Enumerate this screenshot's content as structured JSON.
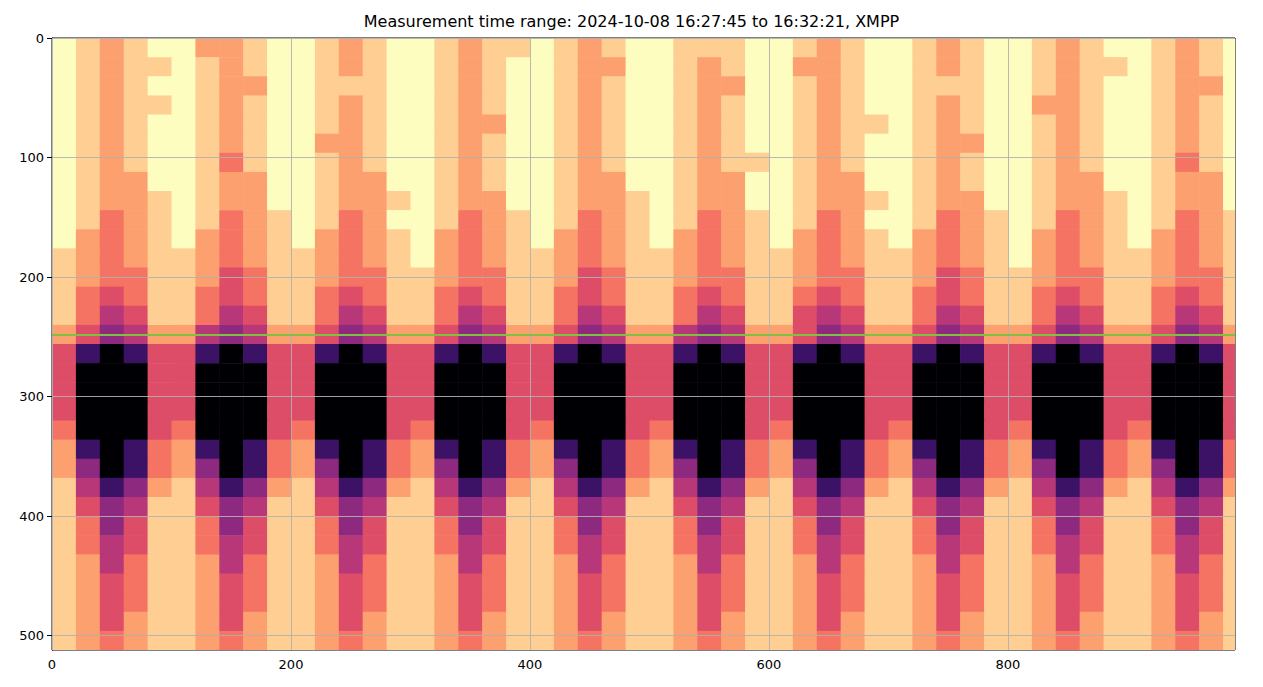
{
  "chart_data": {
    "type": "heatmap",
    "title": "Measurement time range: 2024-10-08 16:27:45 to 16:32:21, XMPP",
    "xlim": [
      0,
      990
    ],
    "xticks": [
      0,
      200,
      400,
      600,
      800
    ],
    "ylim": [
      512,
      0
    ],
    "yticks": [
      0,
      100,
      200,
      300,
      400,
      500
    ],
    "grid": true,
    "reference_line": {
      "y": 248,
      "color": "#80c040"
    },
    "x_bins": [
      0,
      20,
      40,
      60,
      80,
      100,
      120,
      140,
      160,
      180,
      200,
      220,
      240,
      260,
      280,
      300,
      320,
      340,
      360,
      380,
      400,
      420,
      440,
      460,
      480,
      500,
      520,
      540,
      560,
      580,
      600,
      620,
      640,
      660,
      680,
      700,
      720,
      740,
      760,
      780,
      800,
      820,
      840,
      860,
      880,
      900,
      920,
      940,
      960,
      980,
      1000
    ],
    "y_bins": [
      0,
      16,
      32,
      48,
      64,
      80,
      96,
      112,
      128,
      144,
      160,
      176,
      192,
      208,
      224,
      240,
      256,
      272,
      288,
      304,
      320,
      336,
      352,
      368,
      384,
      400,
      416,
      432,
      448,
      464,
      480,
      496,
      512
    ],
    "z": [
      [
        0,
        1,
        2,
        1,
        0,
        0,
        2,
        2,
        1,
        0,
        0,
        1,
        2,
        1,
        0,
        0,
        1,
        2,
        1,
        1,
        0,
        1,
        2,
        1,
        0,
        0,
        1,
        1,
        1,
        0,
        0,
        1,
        2,
        1,
        0,
        0,
        1,
        2,
        1,
        0,
        0,
        1,
        2,
        1,
        0,
        0,
        1,
        2,
        1,
        0
      ],
      [
        0,
        1,
        2,
        1,
        1,
        0,
        1,
        2,
        1,
        0,
        0,
        1,
        2,
        1,
        0,
        0,
        1,
        2,
        1,
        0,
        0,
        1,
        2,
        2,
        0,
        0,
        1,
        2,
        1,
        0,
        0,
        2,
        2,
        1,
        0,
        0,
        1,
        2,
        1,
        0,
        0,
        1,
        2,
        1,
        1,
        0,
        1,
        2,
        1,
        0
      ],
      [
        0,
        1,
        2,
        1,
        0,
        0,
        1,
        2,
        2,
        0,
        0,
        1,
        1,
        1,
        0,
        0,
        1,
        2,
        1,
        0,
        0,
        1,
        2,
        1,
        0,
        0,
        1,
        2,
        2,
        0,
        0,
        1,
        2,
        1,
        0,
        0,
        1,
        1,
        1,
        0,
        0,
        1,
        2,
        1,
        0,
        0,
        1,
        2,
        2,
        0
      ],
      [
        0,
        1,
        2,
        1,
        1,
        0,
        1,
        2,
        1,
        0,
        0,
        1,
        2,
        1,
        0,
        0,
        1,
        2,
        1,
        0,
        0,
        1,
        2,
        1,
        0,
        0,
        1,
        2,
        1,
        0,
        0,
        1,
        2,
        1,
        0,
        0,
        1,
        2,
        1,
        0,
        0,
        2,
        2,
        1,
        0,
        0,
        1,
        2,
        1,
        0
      ],
      [
        0,
        1,
        2,
        1,
        0,
        0,
        1,
        2,
        1,
        0,
        0,
        1,
        2,
        1,
        0,
        0,
        1,
        2,
        2,
        0,
        0,
        1,
        2,
        1,
        0,
        0,
        1,
        2,
        1,
        0,
        0,
        1,
        2,
        1,
        1,
        0,
        1,
        2,
        1,
        0,
        0,
        1,
        2,
        1,
        0,
        0,
        1,
        2,
        1,
        0
      ],
      [
        0,
        1,
        2,
        1,
        0,
        0,
        1,
        2,
        1,
        0,
        0,
        2,
        2,
        1,
        0,
        0,
        1,
        2,
        1,
        0,
        0,
        1,
        2,
        1,
        0,
        0,
        1,
        2,
        1,
        0,
        0,
        1,
        2,
        1,
        0,
        0,
        1,
        2,
        2,
        0,
        0,
        1,
        2,
        1,
        0,
        0,
        1,
        2,
        1,
        0
      ],
      [
        0,
        1,
        2,
        1,
        0,
        0,
        1,
        3,
        1,
        0,
        0,
        1,
        2,
        1,
        0,
        0,
        1,
        2,
        1,
        0,
        0,
        1,
        2,
        1,
        0,
        0,
        1,
        2,
        1,
        1,
        0,
        1,
        2,
        1,
        0,
        0,
        1,
        2,
        1,
        0,
        0,
        1,
        2,
        1,
        0,
        0,
        1,
        3,
        1,
        0
      ],
      [
        0,
        1,
        2,
        2,
        0,
        0,
        1,
        2,
        2,
        0,
        0,
        1,
        2,
        2,
        0,
        0,
        1,
        2,
        1,
        0,
        0,
        1,
        2,
        2,
        0,
        0,
        1,
        2,
        2,
        0,
        0,
        1,
        2,
        2,
        0,
        0,
        1,
        2,
        1,
        0,
        0,
        1,
        2,
        2,
        0,
        0,
        1,
        2,
        2,
        0
      ],
      [
        0,
        1,
        2,
        2,
        1,
        0,
        1,
        2,
        2,
        0,
        0,
        1,
        2,
        2,
        1,
        0,
        1,
        2,
        2,
        0,
        0,
        1,
        2,
        2,
        1,
        0,
        1,
        2,
        2,
        0,
        0,
        1,
        2,
        2,
        1,
        0,
        1,
        2,
        2,
        0,
        0,
        1,
        2,
        2,
        1,
        0,
        1,
        2,
        2,
        0
      ],
      [
        0,
        1,
        3,
        2,
        1,
        0,
        1,
        3,
        2,
        1,
        0,
        1,
        3,
        2,
        0,
        0,
        1,
        3,
        2,
        1,
        0,
        1,
        3,
        2,
        1,
        0,
        1,
        3,
        2,
        1,
        0,
        1,
        3,
        2,
        0,
        0,
        1,
        3,
        2,
        1,
        0,
        1,
        3,
        2,
        1,
        0,
        1,
        3,
        2,
        1
      ],
      [
        0,
        2,
        3,
        2,
        1,
        0,
        2,
        3,
        2,
        1,
        0,
        2,
        3,
        2,
        1,
        0,
        2,
        3,
        2,
        1,
        0,
        2,
        3,
        2,
        1,
        0,
        2,
        3,
        2,
        1,
        0,
        2,
        3,
        2,
        1,
        0,
        2,
        3,
        2,
        1,
        0,
        2,
        3,
        2,
        1,
        0,
        2,
        3,
        2,
        1
      ],
      [
        1,
        2,
        3,
        2,
        1,
        1,
        2,
        3,
        2,
        1,
        1,
        2,
        3,
        2,
        1,
        0,
        2,
        3,
        2,
        1,
        1,
        2,
        3,
        2,
        1,
        1,
        2,
        3,
        2,
        1,
        1,
        2,
        3,
        2,
        1,
        1,
        2,
        3,
        2,
        1,
        0,
        2,
        3,
        2,
        1,
        1,
        2,
        3,
        2,
        1
      ],
      [
        1,
        2,
        3,
        3,
        1,
        1,
        2,
        4,
        3,
        1,
        1,
        2,
        3,
        3,
        1,
        1,
        2,
        3,
        3,
        1,
        1,
        2,
        4,
        3,
        1,
        1,
        2,
        3,
        3,
        1,
        1,
        2,
        3,
        3,
        1,
        1,
        2,
        4,
        3,
        1,
        1,
        2,
        3,
        3,
        1,
        1,
        2,
        3,
        3,
        1
      ],
      [
        1,
        3,
        4,
        3,
        1,
        1,
        3,
        4,
        3,
        1,
        1,
        3,
        4,
        3,
        1,
        1,
        3,
        4,
        3,
        1,
        1,
        3,
        4,
        3,
        1,
        1,
        3,
        4,
        3,
        1,
        1,
        3,
        4,
        3,
        1,
        1,
        3,
        4,
        3,
        1,
        1,
        3,
        4,
        3,
        1,
        1,
        3,
        4,
        3,
        1
      ],
      [
        1,
        3,
        5,
        4,
        1,
        1,
        3,
        5,
        4,
        1,
        1,
        3,
        5,
        4,
        1,
        1,
        3,
        5,
        4,
        1,
        1,
        3,
        5,
        4,
        1,
        1,
        3,
        5,
        4,
        1,
        1,
        4,
        5,
        4,
        1,
        1,
        3,
        5,
        4,
        1,
        1,
        3,
        5,
        4,
        1,
        1,
        3,
        5,
        4,
        1
      ],
      [
        2,
        4,
        6,
        5,
        2,
        2,
        5,
        6,
        5,
        2,
        2,
        4,
        6,
        5,
        2,
        2,
        4,
        6,
        5,
        2,
        2,
        4,
        6,
        5,
        2,
        2,
        5,
        6,
        5,
        2,
        2,
        4,
        6,
        5,
        2,
        2,
        4,
        6,
        5,
        2,
        2,
        4,
        6,
        5,
        2,
        2,
        4,
        6,
        5,
        2
      ],
      [
        4,
        8,
        10,
        8,
        4,
        4,
        8,
        10,
        8,
        4,
        4,
        8,
        10,
        8,
        4,
        4,
        8,
        10,
        8,
        4,
        4,
        8,
        10,
        8,
        4,
        4,
        8,
        10,
        8,
        4,
        4,
        8,
        10,
        8,
        4,
        4,
        8,
        10,
        8,
        4,
        4,
        8,
        10,
        8,
        4,
        4,
        8,
        10,
        8,
        4
      ],
      [
        4,
        10,
        10,
        10,
        4,
        4,
        10,
        10,
        10,
        4,
        4,
        10,
        10,
        10,
        4,
        4,
        10,
        10,
        10,
        4,
        4,
        10,
        10,
        10,
        4,
        4,
        10,
        10,
        10,
        4,
        4,
        10,
        10,
        10,
        4,
        4,
        10,
        10,
        10,
        4,
        4,
        10,
        10,
        10,
        4,
        4,
        10,
        10,
        10,
        4
      ],
      [
        4,
        10,
        10,
        10,
        4,
        4,
        10,
        10,
        10,
        4,
        4,
        10,
        10,
        10,
        4,
        4,
        10,
        10,
        10,
        4,
        4,
        10,
        10,
        10,
        4,
        4,
        10,
        10,
        10,
        4,
        4,
        10,
        10,
        10,
        4,
        4,
        10,
        10,
        10,
        4,
        4,
        10,
        10,
        10,
        4,
        4,
        10,
        10,
        10,
        4
      ],
      [
        4,
        10,
        10,
        10,
        4,
        4,
        10,
        10,
        10,
        4,
        4,
        10,
        10,
        10,
        4,
        4,
        10,
        10,
        10,
        4,
        4,
        10,
        10,
        10,
        4,
        4,
        10,
        10,
        10,
        4,
        4,
        10,
        10,
        10,
        4,
        4,
        10,
        10,
        10,
        4,
        4,
        10,
        10,
        10,
        4,
        4,
        10,
        10,
        10,
        4
      ],
      [
        3,
        10,
        10,
        10,
        4,
        3,
        10,
        10,
        10,
        4,
        3,
        10,
        10,
        10,
        4,
        3,
        10,
        10,
        10,
        4,
        3,
        10,
        10,
        10,
        4,
        3,
        10,
        10,
        10,
        4,
        3,
        10,
        10,
        10,
        4,
        3,
        10,
        10,
        10,
        4,
        3,
        10,
        10,
        10,
        4,
        3,
        10,
        10,
        10,
        4
      ],
      [
        2,
        8,
        10,
        8,
        3,
        2,
        8,
        10,
        8,
        3,
        2,
        8,
        10,
        8,
        3,
        2,
        8,
        10,
        8,
        3,
        2,
        8,
        10,
        8,
        3,
        2,
        8,
        10,
        8,
        3,
        2,
        8,
        10,
        8,
        3,
        2,
        8,
        10,
        8,
        3,
        2,
        8,
        10,
        8,
        3,
        2,
        8,
        10,
        8,
        3
      ],
      [
        2,
        6,
        10,
        8,
        3,
        2,
        6,
        10,
        8,
        3,
        2,
        6,
        10,
        8,
        3,
        2,
        6,
        10,
        8,
        3,
        2,
        6,
        10,
        8,
        3,
        2,
        6,
        10,
        8,
        3,
        2,
        6,
        10,
        8,
        3,
        2,
        6,
        10,
        8,
        3,
        2,
        6,
        10,
        8,
        3,
        2,
        6,
        10,
        8,
        3
      ],
      [
        1,
        5,
        8,
        6,
        2,
        1,
        5,
        8,
        6,
        2,
        1,
        5,
        8,
        6,
        2,
        1,
        5,
        8,
        6,
        2,
        1,
        5,
        8,
        6,
        2,
        1,
        5,
        8,
        6,
        2,
        1,
        5,
        8,
        6,
        2,
        1,
        5,
        8,
        6,
        2,
        1,
        5,
        8,
        6,
        2,
        1,
        5,
        8,
        6,
        2
      ],
      [
        1,
        4,
        6,
        5,
        1,
        1,
        4,
        6,
        5,
        1,
        1,
        4,
        6,
        5,
        1,
        1,
        4,
        6,
        5,
        1,
        1,
        4,
        6,
        5,
        1,
        1,
        4,
        6,
        5,
        1,
        1,
        4,
        6,
        5,
        1,
        1,
        4,
        6,
        5,
        1,
        1,
        4,
        6,
        5,
        1,
        1,
        4,
        6,
        5,
        1
      ],
      [
        1,
        3,
        6,
        4,
        1,
        1,
        3,
        6,
        4,
        1,
        1,
        3,
        6,
        4,
        1,
        1,
        3,
        6,
        4,
        1,
        1,
        3,
        6,
        4,
        1,
        1,
        3,
        6,
        4,
        1,
        1,
        3,
        6,
        4,
        1,
        1,
        3,
        6,
        4,
        1,
        1,
        3,
        6,
        4,
        1,
        1,
        3,
        6,
        4,
        1
      ],
      [
        1,
        3,
        5,
        4,
        1,
        1,
        3,
        5,
        4,
        1,
        1,
        3,
        5,
        4,
        1,
        1,
        3,
        5,
        4,
        1,
        1,
        3,
        5,
        4,
        1,
        1,
        3,
        5,
        4,
        1,
        1,
        3,
        5,
        4,
        1,
        1,
        3,
        5,
        4,
        1,
        1,
        3,
        5,
        4,
        1,
        1,
        3,
        5,
        4,
        1
      ],
      [
        1,
        2,
        5,
        3,
        1,
        1,
        2,
        5,
        3,
        1,
        1,
        2,
        5,
        3,
        1,
        1,
        2,
        5,
        3,
        1,
        1,
        2,
        5,
        3,
        1,
        1,
        2,
        5,
        3,
        1,
        1,
        2,
        5,
        3,
        1,
        1,
        2,
        5,
        3,
        1,
        1,
        2,
        5,
        3,
        1,
        1,
        2,
        5,
        3,
        1
      ],
      [
        1,
        2,
        4,
        3,
        1,
        1,
        2,
        4,
        3,
        1,
        1,
        2,
        4,
        3,
        1,
        1,
        2,
        4,
        3,
        1,
        1,
        2,
        4,
        3,
        1,
        1,
        2,
        4,
        3,
        1,
        1,
        2,
        4,
        3,
        1,
        1,
        2,
        4,
        3,
        1,
        1,
        2,
        4,
        3,
        1,
        1,
        2,
        4,
        3,
        1
      ],
      [
        1,
        2,
        4,
        3,
        1,
        1,
        2,
        4,
        3,
        1,
        1,
        2,
        4,
        3,
        1,
        1,
        2,
        4,
        3,
        1,
        1,
        2,
        4,
        3,
        1,
        1,
        2,
        4,
        3,
        1,
        1,
        2,
        4,
        3,
        1,
        1,
        2,
        4,
        3,
        1,
        1,
        2,
        4,
        3,
        1,
        1,
        2,
        4,
        3,
        1
      ],
      [
        1,
        2,
        4,
        2,
        1,
        1,
        2,
        4,
        2,
        1,
        1,
        2,
        4,
        2,
        1,
        1,
        2,
        4,
        2,
        1,
        1,
        2,
        4,
        2,
        1,
        1,
        2,
        4,
        2,
        1,
        1,
        2,
        4,
        2,
        1,
        1,
        2,
        4,
        2,
        1,
        1,
        2,
        4,
        2,
        1,
        1,
        2,
        4,
        2,
        1
      ],
      [
        1,
        2,
        3,
        2,
        1,
        1,
        2,
        3,
        2,
        1,
        1,
        2,
        3,
        2,
        1,
        1,
        2,
        3,
        2,
        1,
        1,
        2,
        3,
        2,
        1,
        1,
        2,
        3,
        2,
        1,
        1,
        2,
        3,
        2,
        1,
        1,
        2,
        3,
        2,
        1,
        1,
        2,
        3,
        2,
        1,
        1,
        2,
        3,
        2,
        1
      ]
    ]
  }
}
